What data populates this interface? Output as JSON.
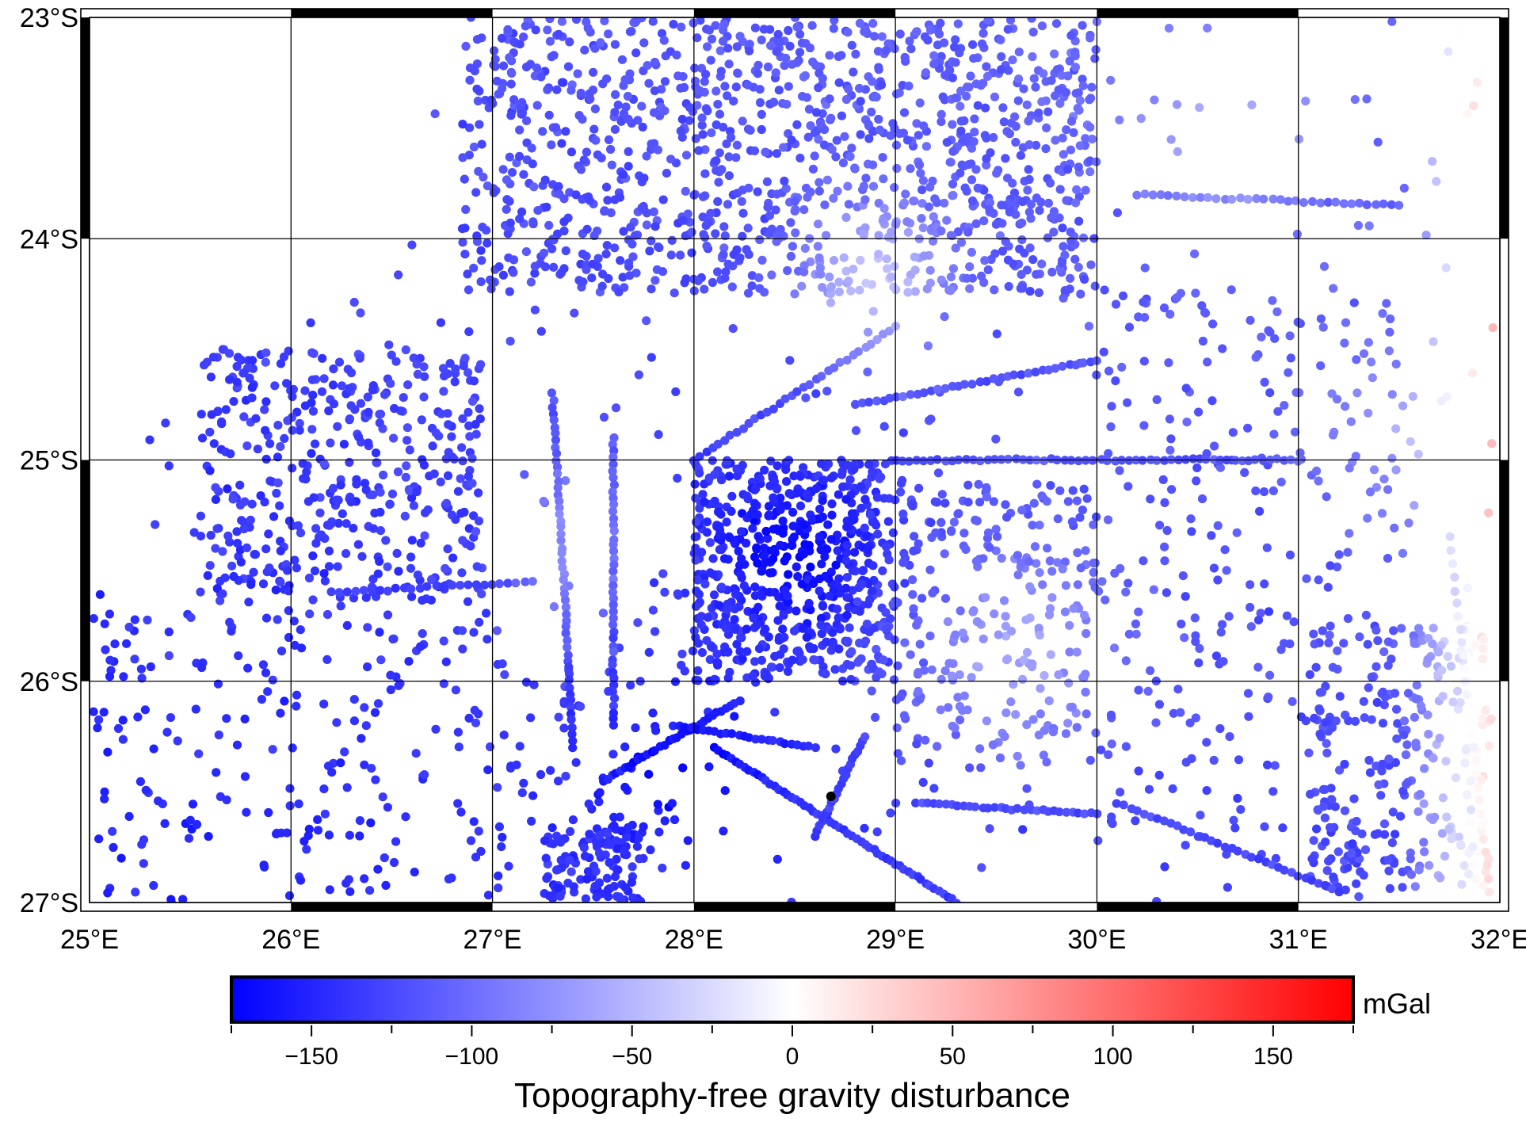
{
  "chart_data": {
    "type": "scatter",
    "map": {
      "lon_range": [
        25,
        32
      ],
      "lat_range": [
        -27,
        -23
      ],
      "x_tick_labels": [
        "25°E",
        "26°E",
        "27°E",
        "28°E",
        "29°E",
        "30°E",
        "31°E",
        "32°E"
      ],
      "y_tick_labels": [
        "23°S",
        "24°S",
        "25°S",
        "26°S",
        "27°S"
      ],
      "grid": true,
      "frame": "plain-fancy"
    },
    "colorbar": {
      "title": "Topography-free gravity disturbance",
      "unit": "mGal",
      "range": [
        -175,
        175
      ],
      "tick_labels": [
        "−150",
        "−100",
        "−50",
        "0",
        "50",
        "100",
        "150"
      ],
      "colors": {
        "low": "#0000ff",
        "mid": "#ffffff",
        "high": "#ff0000"
      }
    },
    "marker": {
      "lon": 28.68,
      "lat": -26.52,
      "color": "#000000"
    },
    "point_density": "dense gravity station survey covering most of the map"
  }
}
